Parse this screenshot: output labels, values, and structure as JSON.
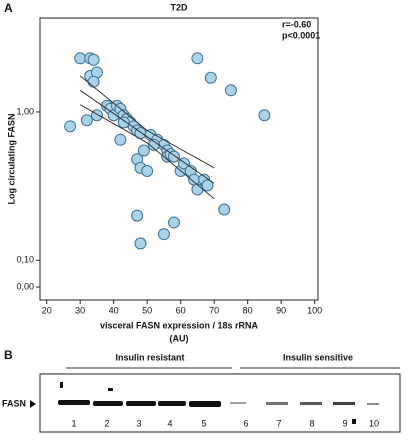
{
  "panels": [
    "A",
    "B"
  ],
  "chart_data": {
    "type": "scatter",
    "title": "T2D",
    "annotations": [
      "r=-0.60",
      "p<0.0001"
    ],
    "xlabel": [
      "visceral FASN expression / 18s rRNA",
      "(AU)"
    ],
    "ylabel": "Log circulating FASN",
    "log_y": true,
    "color": "#a9d3ea",
    "edge_color": "#3d6f95",
    "x": [
      27,
      30,
      33,
      34,
      32,
      33,
      35,
      34,
      35,
      38,
      39,
      40,
      41,
      42,
      43,
      44,
      42,
      45,
      46,
      47,
      48,
      49,
      47,
      48,
      50,
      51,
      53,
      55,
      56,
      56,
      57,
      58,
      60,
      61,
      63,
      64,
      65,
      67,
      68,
      65,
      69,
      75,
      85,
      73,
      47,
      58,
      55,
      48,
      43,
      52
    ],
    "values": [
      0.8,
      2.3,
      2.3,
      2.25,
      0.88,
      1.75,
      1.85,
      1.6,
      0.95,
      1.1,
      1.05,
      0.95,
      1.1,
      1.05,
      0.95,
      0.9,
      0.65,
      0.85,
      0.8,
      0.75,
      0.72,
      0.55,
      0.48,
      0.42,
      0.4,
      0.7,
      0.65,
      0.6,
      0.55,
      0.5,
      0.52,
      0.5,
      0.4,
      0.45,
      0.4,
      0.35,
      0.3,
      0.35,
      0.32,
      2.3,
      1.7,
      1.4,
      0.95,
      0.22,
      0.2,
      0.18,
      0.15,
      0.13,
      0.85,
      0.6
    ],
    "fit": {
      "x": [
        30,
        50,
        70
      ],
      "y": [
        1.4,
        0.68,
        0.33
      ],
      "upper": [
        1.75,
        0.75,
        0.42
      ],
      "lower": [
        1.12,
        0.62,
        0.26
      ],
      "color": "#333333"
    },
    "xlim": [
      18,
      101
    ],
    "xticks": [
      20,
      30,
      40,
      50,
      60,
      70,
      80,
      90,
      100
    ],
    "ylim": [
      0.054,
      4.3
    ],
    "yticks": [
      {
        "value": 1,
        "label": "1,00"
      },
      {
        "value": 0.1,
        "label": "0,10"
      }
    ],
    "y_zero_tick": {
      "value": 0,
      "label": "0,00"
    }
  },
  "blot": {
    "groups": [
      "Insulin resistant",
      "Insulin sensitive"
    ],
    "marker": "FASN",
    "lanes": [
      "1",
      "2",
      "3",
      "4",
      "5",
      "6",
      "7",
      "8",
      "9",
      "10"
    ]
  }
}
